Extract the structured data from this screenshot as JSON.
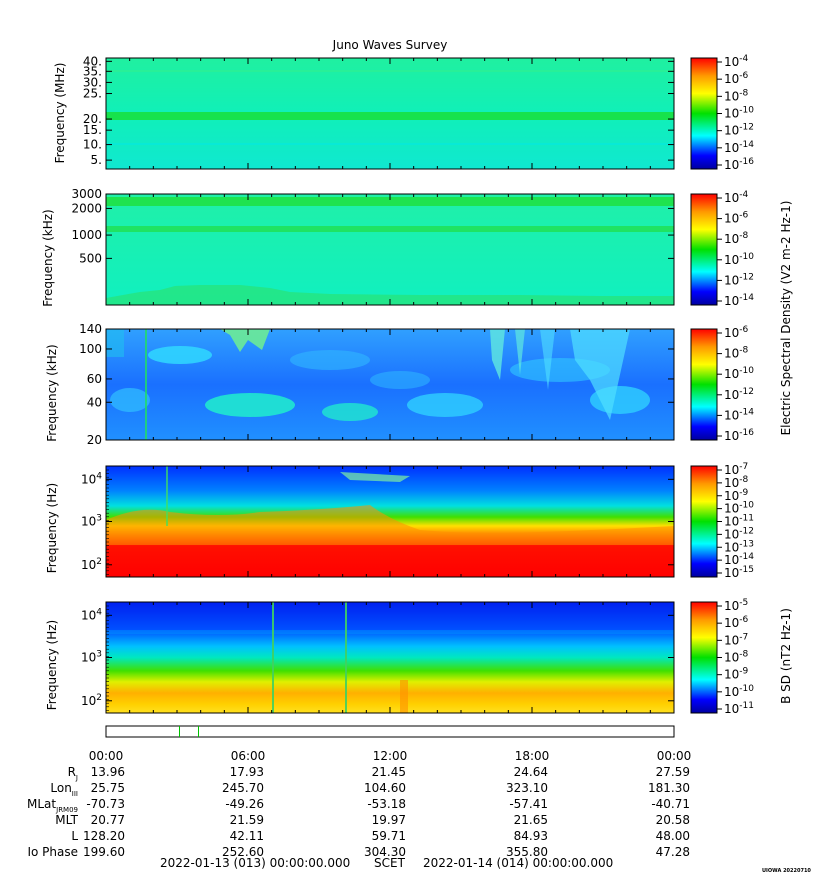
{
  "title": "Juno Waves Survey",
  "time_range": {
    "start": "2022-01-13 (013) 00:00:00.000",
    "middle": "SCET",
    "end": "2022-01-14 (014) 00:00:00.000"
  },
  "watermark": "UIOWA 20220710",
  "x_ticks": [
    "00:00",
    "06:00",
    "12:00",
    "18:00",
    "00:00"
  ],
  "ephemeris": {
    "rows": [
      {
        "label": "R",
        "sub": "J",
        "values": [
          "13.96",
          "17.93",
          "21.45",
          "24.64",
          "27.59"
        ]
      },
      {
        "label": "Lon",
        "sub": "III",
        "values": [
          "25.75",
          "245.70",
          "104.60",
          "323.10",
          "181.30"
        ]
      },
      {
        "label": "MLat",
        "sub": "JRM09",
        "values": [
          "-70.73",
          "-49.26",
          "-53.18",
          "-57.41",
          "-40.71"
        ]
      },
      {
        "label": "MLT",
        "sub": "",
        "values": [
          "20.77",
          "21.59",
          "19.97",
          "21.65",
          "20.58"
        ]
      },
      {
        "label": "L",
        "sub": "",
        "values": [
          "128.20",
          "42.11",
          "59.71",
          "84.93",
          "48.00"
        ]
      },
      {
        "label": "Io Phase",
        "sub": "",
        "values": [
          "199.60",
          "252.60",
          "304.30",
          "355.80",
          "47.28"
        ]
      }
    ]
  },
  "colors": {
    "red": "#ff0000",
    "orange": "#ff9900",
    "yellow": "#ffff00",
    "green": "#00e000",
    "cyan": "#00ffff",
    "blue": "#0000ff",
    "navy": "#0000a0"
  },
  "chart_data": [
    {
      "type": "heatmap",
      "title": "Juno Waves Survey",
      "ylabel": "Frequency (MHz)",
      "yscale": "linear",
      "ylim": [
        3.5,
        41
      ],
      "y_ticks": [
        "40.",
        "35.",
        "30.",
        "25.",
        "20.",
        "15.",
        "10.",
        "5."
      ],
      "colorbar_ticks": [
        "10-4",
        "10-6",
        "10-8",
        "10-10",
        "10-12",
        "10-14",
        "10-16"
      ],
      "colorbar_label": "",
      "features": "uniform background near 10-12 with a bright band near 21 MHz"
    },
    {
      "type": "heatmap",
      "ylabel": "Frequency (kHz)",
      "yscale": "log",
      "y_ticks": [
        "3000",
        "2000",
        "1000",
        "500"
      ],
      "colorbar_ticks": [
        "10-4",
        "10-6",
        "10-8",
        "10-10",
        "10-12",
        "10-14"
      ],
      "colorbar_label": "Electric Spectral Density (V2 m-2 Hz-1)",
      "features": "bands near 2500 kHz and 1100 kHz"
    },
    {
      "type": "heatmap",
      "ylabel": "Frequency (kHz)",
      "yscale": "log",
      "y_ticks": [
        "140",
        "100",
        "60",
        "40",
        "20"
      ],
      "colorbar_ticks": [
        "10-6",
        "10-8",
        "10-10",
        "10-12",
        "10-14",
        "10-16"
      ],
      "colorbar_label": "",
      "features": "blue background with cyan/green emission patches"
    },
    {
      "type": "heatmap",
      "ylabel": "Frequency (Hz)",
      "yscale": "log",
      "y_ticks": [
        "104",
        "103",
        "102"
      ],
      "colorbar_ticks": [
        "10-7",
        "10-8",
        "10-9",
        "10-10",
        "10-11",
        "10-12",
        "10-13",
        "10-14",
        "10-15"
      ],
      "colorbar_label": "",
      "features": "intense red below ~500 Hz, decreasing to blue above ~5 kHz"
    },
    {
      "type": "heatmap",
      "ylabel": "Frequency (Hz)",
      "yscale": "log",
      "y_ticks": [
        "104",
        "103",
        "102"
      ],
      "colorbar_ticks": [
        "10-5",
        "10-6",
        "10-7",
        "10-8",
        "10-9",
        "10-10",
        "10-11"
      ],
      "colorbar_label": "B SD (nT2 Hz-1)",
      "features": "orange/yellow below ~300 Hz, green ~600 Hz, blue above"
    }
  ]
}
